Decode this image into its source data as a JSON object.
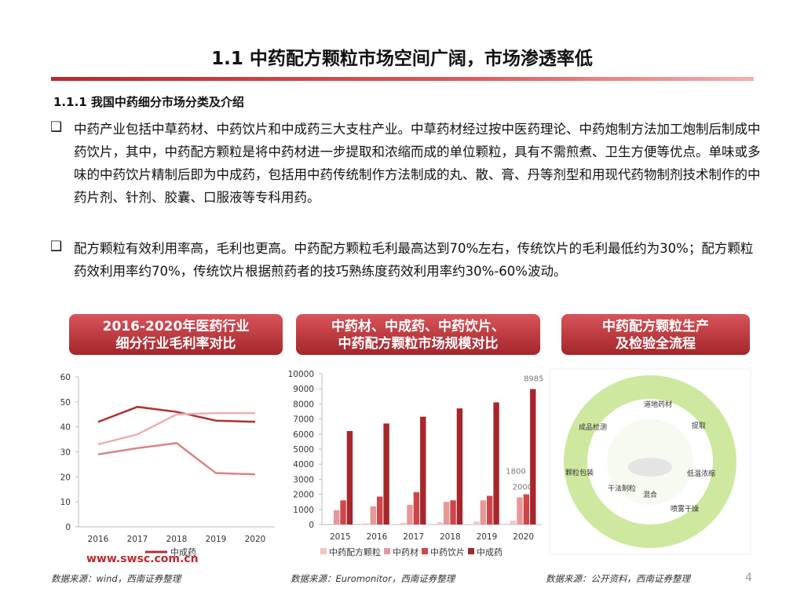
{
  "header": {
    "title": "1.1 中药配方颗粒市场空间广阔，市场渗透率低",
    "subtitle": "1.1.1 我国中药细分市场分类及介绍"
  },
  "bullets": [
    "中药产业包括中草药材、中药饮片和中成药三大支柱产业。中草药材经过按中医药理论、中药炮制方法加工炮制后制成中药饮片，其中，中药配方颗粒是将中药材进一步提取和浓缩而成的单位颗粒，具有不需煎煮、卫生方便等优点。单味或多味的中药饮片精制后即为中成药，包括用中药传统制作方法制成的丸、散、膏、丹等剂型和用现代药物制剂技术制作的中药片剂、针剂、胶囊、口服液等专科用药。",
    "配方颗粒有效利用率高，毛利也更高。中药配方颗粒毛利最高达到70%左右，传统饮片的毛利最低约为30%；配方颗粒药效利用率约70%，传统饮片根据煎药者的技巧熟练度药效利用率约30%-60%波动。"
  ],
  "banners": [
    {
      "lines": [
        "2016-2020年医药行业",
        "细分行业毛利率对比"
      ]
    },
    {
      "lines": [
        "中药材、中成药、中药饮片、",
        "中药配方颗粒市场规模对比"
      ]
    },
    {
      "lines": [
        "中药配方颗粒生产",
        "及检验全流程"
      ]
    }
  ],
  "chart_data": [
    {
      "type": "line",
      "categories": [
        "2016",
        "2017",
        "2018",
        "2019",
        "2020"
      ],
      "ylim": [
        0,
        60
      ],
      "yticks": [
        0,
        10,
        20,
        30,
        40,
        50,
        60
      ],
      "series": [
        {
          "name": "中成药",
          "color": "#b03035",
          "values": [
            42,
            48,
            46,
            42.5,
            42
          ]
        },
        {
          "color": "#ebb0b0",
          "values": [
            33,
            37,
            45,
            45.5,
            45.5
          ]
        },
        {
          "color": "#dc8484",
          "values": [
            29,
            31.5,
            33.5,
            21.5,
            21
          ]
        }
      ]
    },
    {
      "type": "bar",
      "categories": [
        "2015",
        "2016",
        "2017",
        "2018",
        "2019",
        "2020"
      ],
      "ylim": [
        0,
        10000
      ],
      "yticks": [
        0,
        1000,
        2000,
        3000,
        4000,
        5000,
        6000,
        7000,
        8000,
        9000,
        10000
      ],
      "series": [
        {
          "name": "中药配方颗粒",
          "color": "#f2c4c4",
          "values": [
            50,
            70,
            110,
            150,
            200,
            255
          ]
        },
        {
          "name": "中药材",
          "color": "#e69898",
          "values": [
            950,
            1200,
            1300,
            1500,
            1600,
            1800
          ]
        },
        {
          "name": "中药饮片",
          "color": "#d0454a",
          "values": [
            1600,
            1850,
            2150,
            1600,
            1900,
            2000
          ]
        },
        {
          "name": "中成药",
          "color": "#a6262c",
          "values": [
            6200,
            6700,
            7150,
            7700,
            8100,
            8985
          ]
        }
      ]
    }
  ],
  "diagram": {
    "steps": [
      "道地药材",
      "提取",
      "低温浓缩",
      "喷雾干燥",
      "混合",
      "干法制粒",
      "颗粒包装",
      "成品检测"
    ]
  },
  "footer": {
    "sources": [
      "数据来源：wind，西南证券整理",
      "数据来源：Euromonitor，西南证券整理",
      "数据来源：公开资料，西南证券整理"
    ],
    "logo": "www.swsc.com.cn",
    "page": "4"
  }
}
